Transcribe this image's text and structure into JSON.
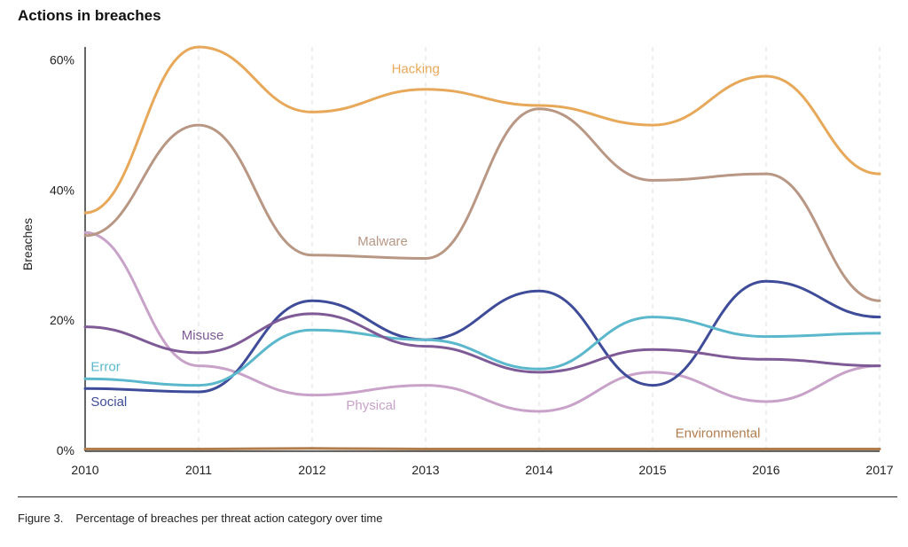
{
  "chart_data": {
    "type": "line",
    "title": "Actions in breaches",
    "ylabel": "Breaches",
    "xlabel": "",
    "x": [
      2010,
      2011,
      2012,
      2013,
      2014,
      2015,
      2016,
      2017
    ],
    "ylim": [
      0,
      62
    ],
    "yticks": [
      0,
      20,
      40,
      60
    ],
    "ytick_format": "percent",
    "grid": "vertical-dashed",
    "legend": "inline-labels",
    "series": [
      {
        "name": "Hacking",
        "color": "#E8A85A",
        "values": [
          36.5,
          62,
          52,
          55.5,
          53,
          50,
          57.5,
          42.5
        ],
        "label_at": {
          "x": 2012.7,
          "y": 58
        }
      },
      {
        "name": "Malware",
        "color": "#B99785",
        "values": [
          33,
          50,
          30,
          29.5,
          52.5,
          41.5,
          42.5,
          23
        ],
        "label_at": {
          "x": 2012.4,
          "y": 31.5
        }
      },
      {
        "name": "Misuse",
        "color": "#7E5A96",
        "values": [
          19,
          15,
          21,
          16,
          12,
          15.5,
          14,
          13
        ],
        "label_at": {
          "x": 2010.85,
          "y": 17
        }
      },
      {
        "name": "Error",
        "color": "#5BB8CC",
        "values": [
          11,
          10,
          18.5,
          17,
          12.5,
          20.5,
          17.5,
          18
        ],
        "label_at": {
          "x": 2010.05,
          "y": 12.2
        }
      },
      {
        "name": "Social",
        "color": "#3F4C9A",
        "values": [
          9.5,
          9,
          23,
          17,
          24.5,
          10,
          26,
          20.5
        ],
        "label_at": {
          "x": 2010.05,
          "y": 6.8
        }
      },
      {
        "name": "Physical",
        "color": "#C8A2C8",
        "values": [
          33.5,
          13,
          8.5,
          10,
          6,
          12,
          7.5,
          13
        ],
        "label_at": {
          "x": 2012.3,
          "y": 6.3
        }
      },
      {
        "name": "Environmental",
        "color": "#B07D4E",
        "values": [
          0.2,
          0.2,
          0.3,
          0.2,
          0.2,
          0.2,
          0.2,
          0.2
        ],
        "label_at": {
          "x": 2015.2,
          "y": 2
        }
      }
    ]
  },
  "caption": {
    "figure": "Figure 3.",
    "text": "Percentage of breaches per threat action category over time"
  }
}
